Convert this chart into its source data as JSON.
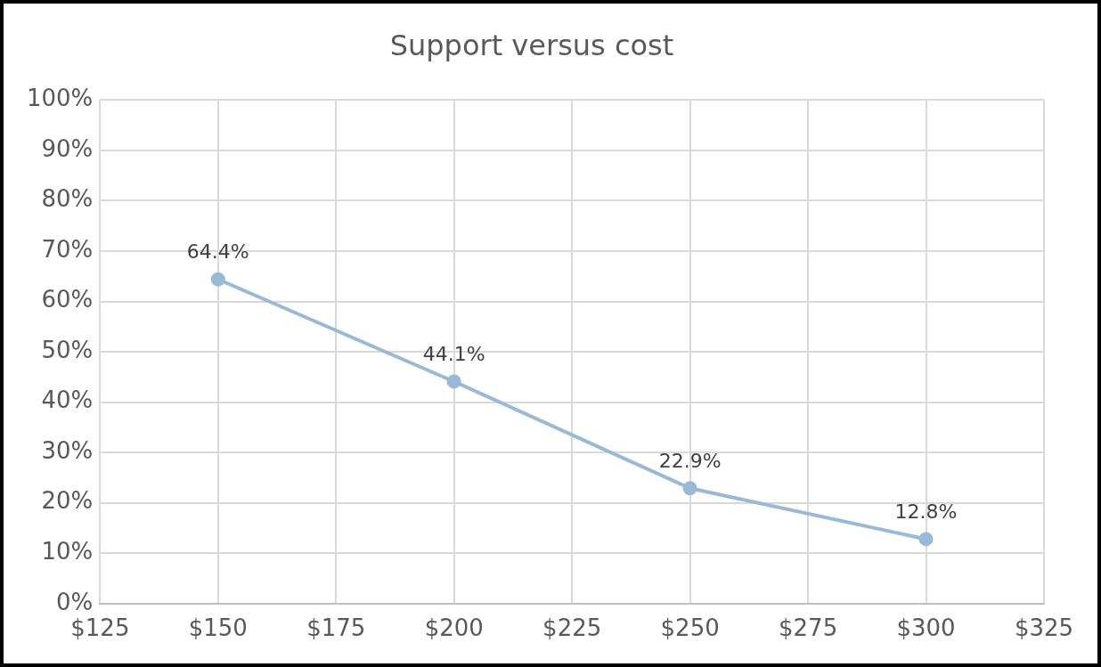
{
  "chart_data": {
    "type": "line",
    "title": "Support versus cost",
    "x": [
      150,
      200,
      250,
      300
    ],
    "series": [
      {
        "color": "#9ab9d7",
        "values": [
          64.4,
          44.1,
          22.9,
          12.8
        ],
        "value_labels": [
          "64.4%",
          "44.1%",
          "22.9%",
          "12.8%"
        ]
      }
    ],
    "xlim": [
      125,
      325
    ],
    "xticks": [
      {
        "value": 125,
        "label": "$125"
      },
      {
        "value": 150,
        "label": "$150"
      },
      {
        "value": 175,
        "label": "$175"
      },
      {
        "value": 200,
        "label": "$200"
      },
      {
        "value": 225,
        "label": "$225"
      },
      {
        "value": 250,
        "label": "$250"
      },
      {
        "value": 275,
        "label": "$275"
      },
      {
        "value": 300,
        "label": "$300"
      },
      {
        "value": 325,
        "label": "$325"
      }
    ],
    "ylim": [
      0,
      100
    ],
    "yticks": [
      {
        "value": 0,
        "label": "0%"
      },
      {
        "value": 10,
        "label": "10%"
      },
      {
        "value": 20,
        "label": "20%"
      },
      {
        "value": 30,
        "label": "30%"
      },
      {
        "value": 40,
        "label": "40%"
      },
      {
        "value": 50,
        "label": "50%"
      },
      {
        "value": 60,
        "label": "60%"
      },
      {
        "value": 70,
        "label": "70%"
      },
      {
        "value": 80,
        "label": "80%"
      },
      {
        "value": 90,
        "label": "90%"
      },
      {
        "value": 100,
        "label": "100%"
      }
    ],
    "grid": true,
    "legend": false,
    "marker": "circle",
    "line_style": "solid"
  }
}
